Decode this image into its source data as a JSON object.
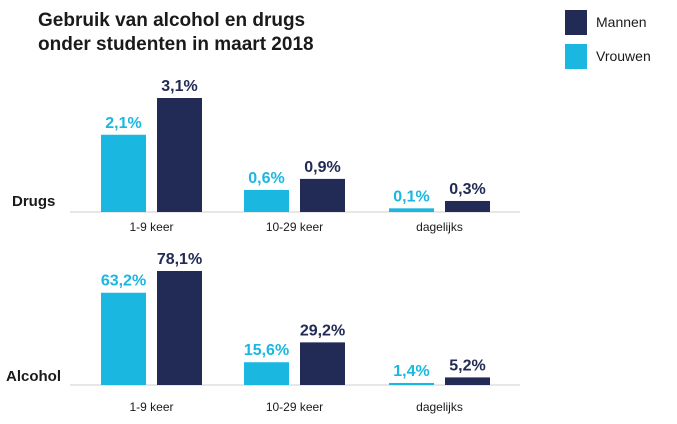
{
  "title_lines": [
    "Gebruik van alcohol en drugs",
    "onder studenten in maart 2018"
  ],
  "legend": [
    {
      "label": "Mannen",
      "color": "#222b55"
    },
    {
      "label": "Vrouwen",
      "color": "#1ab7e0"
    }
  ],
  "chart_data": [
    {
      "type": "bar",
      "panel_label": "Drugs",
      "categories": [
        "1-9 keer",
        "10-29 keer",
        "dagelijks"
      ],
      "series": [
        {
          "name": "Vrouwen",
          "values": [
            2.1,
            0.6,
            0.1
          ],
          "labels": [
            "2,1%",
            "0,6%",
            "0,1%"
          ],
          "color": "#1ab7e0"
        },
        {
          "name": "Mannen",
          "values": [
            3.1,
            0.9,
            0.3
          ],
          "labels": [
            "3,1%",
            "0,9%",
            "0,3%"
          ],
          "color": "#222b55"
        }
      ],
      "legend_position": "top-right"
    },
    {
      "type": "bar",
      "panel_label": "Alcohol",
      "categories": [
        "1-9 keer",
        "10-29 keer",
        "dagelijks"
      ],
      "series": [
        {
          "name": "Vrouwen",
          "values": [
            63.2,
            15.6,
            1.4
          ],
          "labels": [
            "63,2%",
            "15,6%",
            "1,4%"
          ],
          "color": "#1ab7e0"
        },
        {
          "name": "Mannen",
          "values": [
            78.1,
            29.2,
            5.2
          ],
          "labels": [
            "78,1%",
            "29,2%",
            "5,2%"
          ],
          "color": "#222b55"
        }
      ],
      "legend_position": "top-right"
    }
  ]
}
